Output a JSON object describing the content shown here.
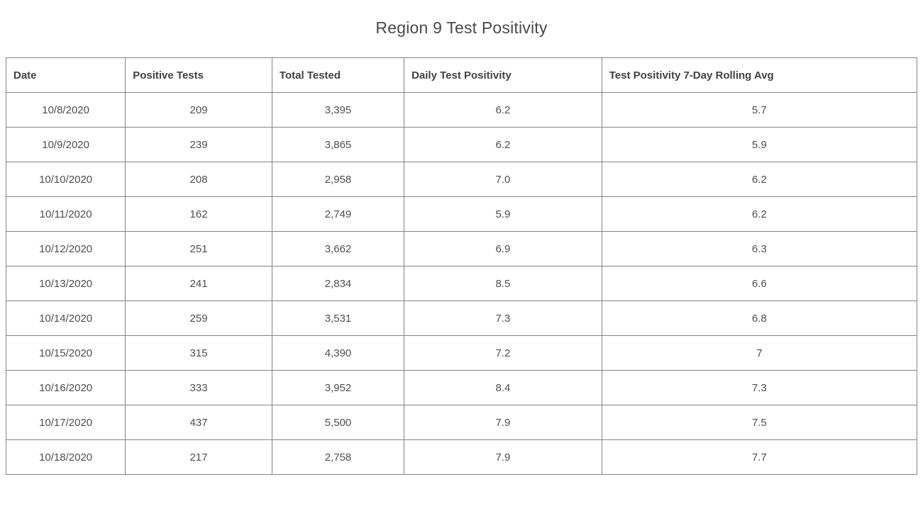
{
  "title": "Region 9 Test Positivity",
  "colors": {
    "background": "#ffffff",
    "title_text": "#4a4a4a",
    "header_text": "#424242",
    "cell_text": "#4f4f4f",
    "table_border": "#858585"
  },
  "chart_data": {
    "type": "table",
    "title": "Region 9 Test Positivity",
    "columns": [
      "Date",
      "Positive Tests",
      "Total Tested",
      "Daily Test Positivity",
      "Test Positivity 7-Day Rolling Avg"
    ],
    "rows": [
      [
        "10/8/2020",
        "209",
        "3,395",
        "6.2",
        "5.7"
      ],
      [
        "10/9/2020",
        "239",
        "3,865",
        "6.2",
        "5.9"
      ],
      [
        "10/10/2020",
        "208",
        "2,958",
        "7.0",
        "6.2"
      ],
      [
        "10/11/2020",
        "162",
        "2,749",
        "5.9",
        "6.2"
      ],
      [
        "10/12/2020",
        "251",
        "3,662",
        "6.9",
        "6.3"
      ],
      [
        "10/13/2020",
        "241",
        "2,834",
        "8.5",
        "6.6"
      ],
      [
        "10/14/2020",
        "259",
        "3,531",
        "7.3",
        "6.8"
      ],
      [
        "10/15/2020",
        "315",
        "4,390",
        "7.2",
        "7"
      ],
      [
        "10/16/2020",
        "333",
        "3,952",
        "8.4",
        "7.3"
      ],
      [
        "10/17/2020",
        "437",
        "5,500",
        "7.9",
        "7.5"
      ],
      [
        "10/18/2020",
        "217",
        "2,758",
        "7.9",
        "7.7"
      ]
    ]
  }
}
